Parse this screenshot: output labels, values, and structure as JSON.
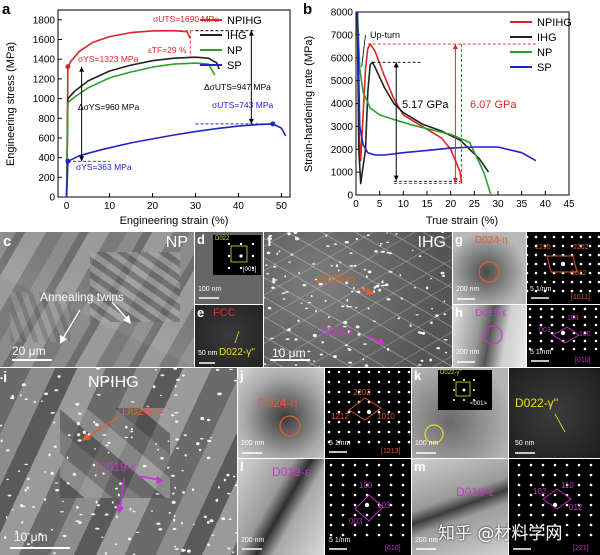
{
  "panel_labels": {
    "a": "a",
    "b": "b",
    "c": "c",
    "d": "d",
    "e": "e",
    "f": "f",
    "g": "g",
    "h": "h",
    "i": "i",
    "j": "j",
    "k": "k",
    "l": "l",
    "m": "m"
  },
  "colors": {
    "NPIHG": "#d62728",
    "IHG": "#222222",
    "NP": "#2ca02c",
    "SP": "#2222cc",
    "orange": "#e2602a",
    "magenta": "#cc33cc",
    "yellow": "#e8e020"
  },
  "chart_data": [
    {
      "type": "line",
      "xlabel": "Engineering strain (%)",
      "ylabel": "Engineering stress (MPa)",
      "xlim": [
        -2,
        52
      ],
      "ylim": [
        0,
        1900
      ],
      "xticks": [
        0,
        10,
        20,
        30,
        40,
        50
      ],
      "yticks": [
        0,
        200,
        400,
        600,
        800,
        1000,
        1200,
        1400,
        1600,
        1800
      ],
      "legend": "top-right",
      "series": [
        {
          "name": "NPIHG",
          "x": [
            0,
            0.3,
            1,
            3,
            6,
            10,
            15,
            20,
            25,
            28,
            28.8
          ],
          "y": [
            0,
            1323,
            1380,
            1480,
            1570,
            1630,
            1670,
            1688,
            1690,
            1680,
            1610
          ]
        },
        {
          "name": "IHG",
          "x": [
            0,
            0.3,
            2,
            5,
            10,
            15,
            20,
            25,
            30,
            33,
            35,
            35.5
          ],
          "y": [
            0,
            1000,
            1080,
            1180,
            1280,
            1340,
            1385,
            1410,
            1420,
            1410,
            1360,
            1300
          ]
        },
        {
          "name": "NP",
          "x": [
            0,
            0.3,
            2,
            5,
            10,
            15,
            20,
            25,
            30,
            33,
            34.5
          ],
          "y": [
            0,
            960,
            1020,
            1110,
            1210,
            1270,
            1320,
            1350,
            1360,
            1350,
            1240
          ]
        },
        {
          "name": "SP",
          "x": [
            0,
            0.3,
            3,
            8,
            15,
            20,
            25,
            30,
            35,
            40,
            45,
            48,
            50,
            51
          ],
          "y": [
            0,
            363,
            420,
            480,
            550,
            590,
            630,
            665,
            695,
            720,
            738,
            743,
            700,
            620
          ]
        }
      ],
      "annotations": {
        "npihg_uts": "σUTS=1690 MPa",
        "npihg_ys": "σYS=1323 MPa",
        "npihg_elong": "εTF=29 %",
        "delta_ys": "ΔσYS=960 MPa",
        "delta_uts": "ΔσUTS=947 MPa",
        "sp_uts": "σUTS=743 MPa",
        "sp_ys": "σYS=363 MPa"
      }
    },
    {
      "type": "line",
      "xlabel": "True strain (%)",
      "ylabel": "Strain-hardening rate (MPa)",
      "xlim": [
        0,
        45
      ],
      "ylim": [
        0,
        8000
      ],
      "xticks": [
        0,
        5,
        10,
        15,
        20,
        25,
        30,
        35,
        40,
        45
      ],
      "yticks": [
        0,
        1000,
        2000,
        3000,
        4000,
        5000,
        6000,
        7000,
        8000
      ],
      "legend": "top-right",
      "series": [
        {
          "name": "NPIHG",
          "x": [
            0.3,
            0.6,
            1,
            1.5,
            2,
            2.5,
            3,
            4,
            6,
            8,
            10,
            14,
            18,
            20,
            22,
            22.3
          ],
          "y": [
            8000,
            3000,
            1500,
            3500,
            5500,
            6400,
            6600,
            6300,
            5200,
            4200,
            3500,
            3000,
            2500,
            2000,
            1000,
            500
          ]
        },
        {
          "name": "IHG",
          "x": [
            0.3,
            0.6,
            1,
            2,
            2.5,
            3,
            3.5,
            4,
            6,
            8,
            10,
            14,
            18,
            22,
            26,
            28
          ],
          "y": [
            8000,
            2000,
            500,
            2000,
            4500,
            5700,
            5800,
            5600,
            4700,
            4000,
            3600,
            3100,
            2800,
            2400,
            1600,
            1000
          ]
        },
        {
          "name": "NP",
          "x": [
            0.3,
            0.8,
            1.5,
            3,
            5,
            8,
            12,
            16,
            20,
            24,
            27,
            28.5
          ],
          "y": [
            8000,
            5500,
            4500,
            3800,
            3500,
            3300,
            3050,
            2850,
            2650,
            2300,
            1000,
            0
          ]
        },
        {
          "name": "SP",
          "x": [
            0.3,
            0.8,
            1.5,
            2.5,
            4,
            6,
            10,
            15,
            20,
            25,
            30,
            35,
            38
          ],
          "y": [
            8000,
            3000,
            2200,
            1850,
            1750,
            1750,
            1850,
            1950,
            2050,
            2100,
            2100,
            1850,
            1500
          ]
        }
      ],
      "annotations": {
        "upturn": "Up-turn",
        "ihg_increase": "5.17 GPa",
        "npihg_increase": "6.07 GPa"
      }
    }
  ],
  "micrographs": {
    "c": {
      "label": "NP",
      "twins": "Annealing twins",
      "scale": "20 μm"
    },
    "d": {
      "phase": "D022",
      "scale": "100 nm",
      "zone": "[001]"
    },
    "e": {
      "phase1": "FCC",
      "phase2": "D022-γ''",
      "scale": "50 nm"
    },
    "f": {
      "label": "IHG",
      "phase1": "D024-η",
      "phase2": "D019-ε",
      "scale": "10 μm"
    },
    "g": {
      "phase": "D024-η",
      "scale1": "200 nm",
      "scale2": "5 1/nm",
      "spots": [
        "1210",
        "2202",
        "1012"
      ],
      "zone": "[1011]"
    },
    "h": {
      "phase": "D019-ε",
      "scale1": "200 nm",
      "scale2": "5 1/nm",
      "spots": [
        "003",
        "103",
        "100"
      ],
      "zone": "[010]"
    },
    "i": {
      "label": "NPIHG",
      "phase1": "D024-η",
      "phase2": "D019-ε",
      "scale": "10 μm"
    },
    "j": {
      "phase": "D024-η",
      "scale1": "200 nm",
      "scale2": "5 1/nm",
      "spots": [
        "2202",
        "1212",
        "1010"
      ],
      "zone": "[1213]"
    },
    "k": {
      "phase": "D022-γ''",
      "inset_phase": "D022-γ''",
      "inset_zone": "<001>",
      "scale1": "100 nm",
      "scale2": "50 nm"
    },
    "l": {
      "phase": "D019-ε",
      "scale1": "200 nm",
      "scale2": "5 1/nm",
      "spots": [
        "100",
        "103",
        "003"
      ],
      "zone": "[010]"
    },
    "m": {
      "phase": "D019-ε",
      "scale1": "200 nm",
      "scale2": "5 1/nm",
      "spots": [
        "102",
        "110",
        "012"
      ],
      "zone": "[221]"
    }
  },
  "watermark": "知乎 @材料学网"
}
